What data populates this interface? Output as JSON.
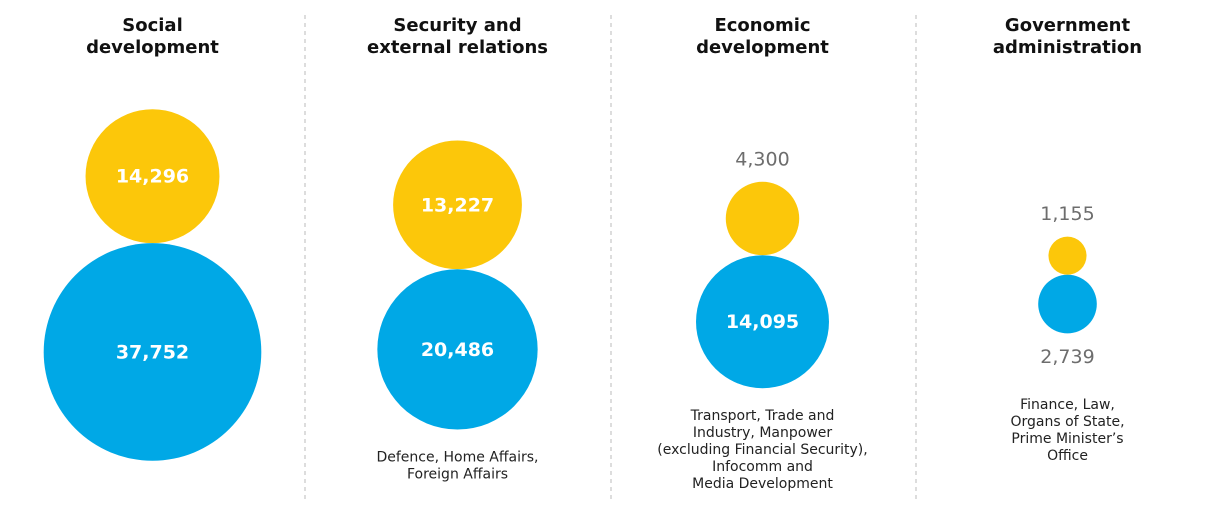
{
  "chart_data": {
    "type": "bubble",
    "categories": [
      [
        "Social",
        "development"
      ],
      [
        "Security and",
        "external relations"
      ],
      [
        "Economic",
        "development"
      ],
      [
        "Government",
        "administration"
      ]
    ],
    "descriptions": [
      null,
      [
        "Defence, Home Affairs,",
        "Foreign Affairs"
      ],
      [
        "Transport, Trade and",
        "Industry, Manpower",
        "(excluding Financial Security),",
        "Infocomm and",
        "Media Development"
      ],
      [
        "Finance, Law,",
        "Organs of State,",
        "Prime Minister’s",
        "Office"
      ]
    ],
    "series": [
      {
        "color": "#fcc70a",
        "values": [
          14296,
          13227,
          4300,
          1155
        ],
        "value_labels": [
          "14,296",
          "13,227",
          "4,300",
          "1,155"
        ]
      },
      {
        "color": "#00a8e6",
        "values": [
          37752,
          20486,
          14095,
          2739
        ],
        "value_labels": [
          "37,752",
          "20,486",
          "14,095",
          "2,739"
        ]
      }
    ]
  }
}
